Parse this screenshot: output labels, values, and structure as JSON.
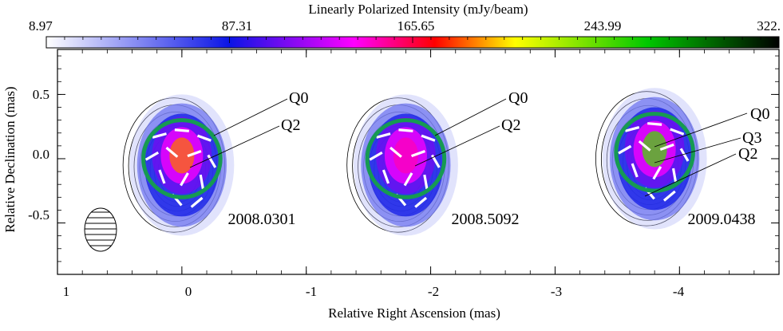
{
  "chart_data": {
    "type": "heatmap",
    "colorbar": {
      "title": "Linearly Polarized Intensity (mJy/beam)",
      "ticks": [
        "8.97",
        "87.31",
        "165.65",
        "243.99",
        "322."
      ],
      "colormap": [
        "#ffffff",
        "#0a14e6",
        "#ff00ff",
        "#ff0000",
        "#ffff00",
        "#00c800",
        "#000000"
      ]
    },
    "xlabel": "Relative Right Ascension (mas)",
    "ylabel": "Relative Declination (mas)",
    "xlim": [
      1,
      -4.8
    ],
    "ylim": [
      -0.9,
      0.85
    ],
    "x_ticks": [
      1,
      0,
      -1,
      -2,
      -3,
      -4
    ],
    "x_tick_labels": [
      "1",
      "0",
      "-1",
      "-2",
      "-3",
      "-4"
    ],
    "y_ticks": [
      0.5,
      0.0,
      -0.5
    ],
    "y_tick_labels": [
      "0.5",
      "0.0",
      "-0.5"
    ],
    "epochs": [
      {
        "label": "2008.0301",
        "center_x": 0.0,
        "center_y": 0.0,
        "peak_mJy": 190,
        "components": [
          "Q0",
          "Q2"
        ]
      },
      {
        "label": "2008.5092",
        "center_x": -1.8,
        "center_y": 0.0,
        "peak_mJy": 150,
        "components": [
          "Q0",
          "Q2"
        ]
      },
      {
        "label": "2009.0438",
        "center_x": -3.8,
        "center_y": 0.05,
        "peak_mJy": 250,
        "components": [
          "Q0",
          "Q3",
          "Q2"
        ]
      }
    ],
    "circle_color": "#169a52"
  }
}
